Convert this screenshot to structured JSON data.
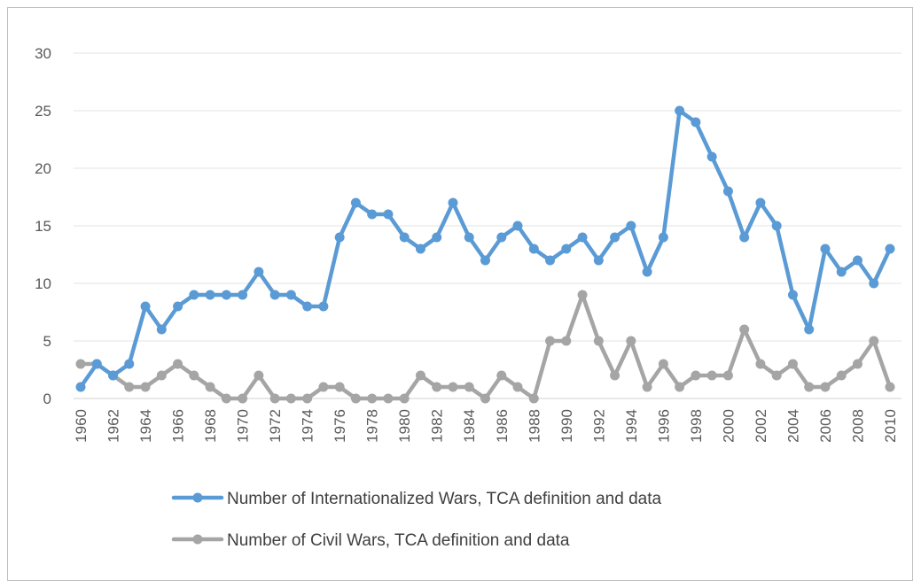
{
  "chart_data": {
    "type": "line",
    "title": "",
    "xlabel": "",
    "ylabel": "",
    "ylim": [
      0,
      30
    ],
    "yticks": [
      0,
      5,
      10,
      15,
      20,
      25,
      30
    ],
    "grid": true,
    "legend_position": "bottom",
    "x": [
      1960,
      1961,
      1962,
      1963,
      1964,
      1965,
      1966,
      1967,
      1968,
      1969,
      1970,
      1971,
      1972,
      1973,
      1974,
      1975,
      1976,
      1977,
      1978,
      1979,
      1980,
      1981,
      1982,
      1983,
      1984,
      1985,
      1986,
      1987,
      1988,
      1989,
      1990,
      1991,
      1992,
      1993,
      1994,
      1995,
      1996,
      1997,
      1998,
      1999,
      2000,
      2001,
      2002,
      2003,
      2004,
      2005,
      2006,
      2007,
      2008,
      2009,
      2010
    ],
    "x_tick_labels": [
      "1960",
      "1962",
      "1964",
      "1966",
      "1968",
      "1970",
      "1972",
      "1974",
      "1976",
      "1978",
      "1980",
      "1982",
      "1984",
      "1986",
      "1988",
      "1990",
      "1992",
      "1994",
      "1996",
      "1998",
      "2000",
      "2002",
      "2004",
      "2006",
      "2008",
      "2010"
    ],
    "series": [
      {
        "name": "Number of Internationalized Wars, TCA definition and data",
        "color": "#5b9bd5",
        "values": [
          1,
          3,
          2,
          3,
          8,
          6,
          8,
          9,
          9,
          9,
          9,
          11,
          9,
          9,
          8,
          8,
          14,
          17,
          16,
          16,
          14,
          13,
          14,
          17,
          14,
          12,
          14,
          15,
          13,
          12,
          13,
          14,
          12,
          14,
          15,
          11,
          14,
          25,
          24,
          21,
          18,
          14,
          17,
          15,
          9,
          6,
          13,
          11,
          12,
          10,
          13
        ]
      },
      {
        "name": "Number of Civil Wars, TCA definition and data",
        "color": "#a5a5a5",
        "values": [
          3,
          3,
          2,
          1,
          1,
          2,
          3,
          2,
          1,
          0,
          0,
          2,
          0,
          0,
          0,
          1,
          1,
          0,
          0,
          0,
          0,
          2,
          1,
          1,
          1,
          0,
          2,
          1,
          0,
          5,
          5,
          9,
          5,
          2,
          5,
          1,
          3,
          1,
          2,
          2,
          2,
          6,
          3,
          2,
          3,
          1,
          1,
          2,
          3,
          5,
          1
        ]
      }
    ]
  }
}
